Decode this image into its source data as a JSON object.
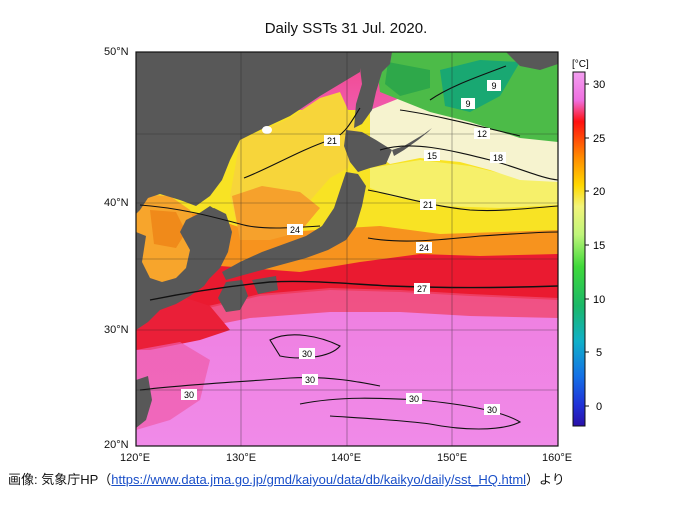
{
  "title": "Daily SSTs 31 Jul. 2020.",
  "lat_labels": [
    "50°N",
    "40°N",
    "30°N",
    "20°N"
  ],
  "lon_labels": [
    "120°E",
    "130°E",
    "140°E",
    "150°E",
    "160°E"
  ],
  "colorbar": {
    "unit": "[°C]",
    "ticks": [
      "30",
      "25",
      "20",
      "15",
      "10",
      "5",
      "0"
    ]
  },
  "contour_labels": {
    "c9a": "9",
    "c9b": "9",
    "c12": "12",
    "c15": "15",
    "c18": "18",
    "c21a": "21",
    "c21b": "21",
    "c24a": "24",
    "c24b": "24",
    "c27": "27",
    "c30a": "30",
    "c30b": "30",
    "c30c": "30",
    "c30d": "30",
    "c30e": "30"
  },
  "credit": {
    "prefix": "画像: 気象庁HP（",
    "url": "https://www.data.jma.go.jp/gmd/kaiyou/data/db/kaikyo/daily/sst_HQ.html",
    "suffix": "）より"
  },
  "colors": {
    "land": "#585858",
    "magenta": "#ef7fe8",
    "red": "#e8102a",
    "orange": "#f7921c",
    "yellow": "#f9e51e",
    "green": "#49b94a",
    "cream": "#f5f3cf"
  }
}
